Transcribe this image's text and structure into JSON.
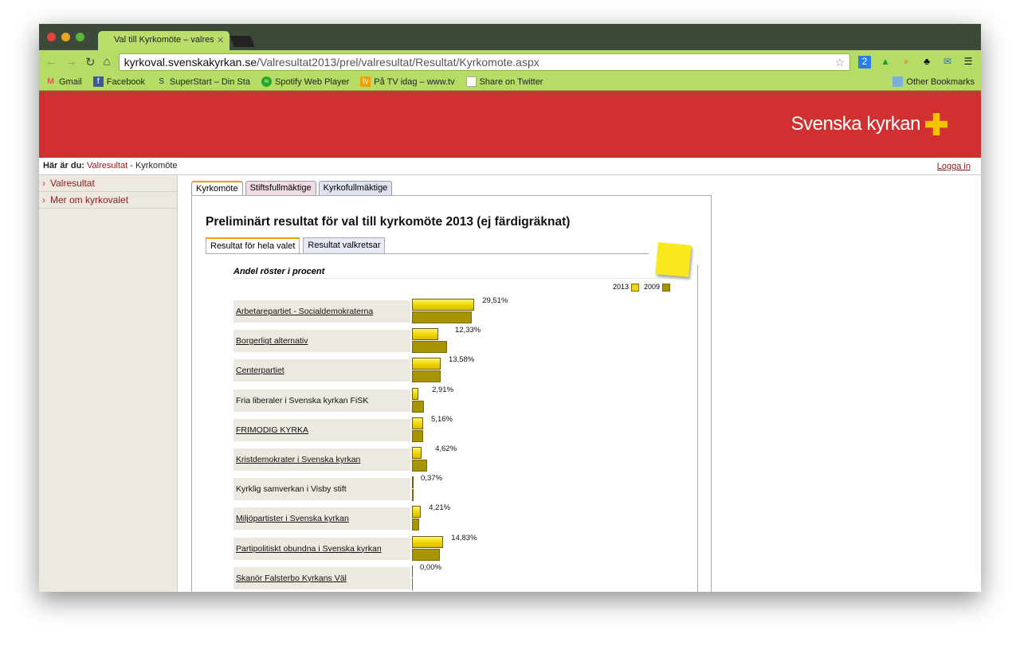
{
  "browser": {
    "tab_title": "Val till Kyrkomöte – valres",
    "url_host": "kyrkoval.svenskakyrkan.se",
    "url_path": "/Valresultat2013/prel/valresultat/Resultat/Kyrkomote.aspx",
    "extension_badge": "2",
    "bookmarks": [
      "Gmail",
      "Facebook",
      "SuperStart – Din Sta",
      "Spotify Web Player",
      "På TV idag – www.tv",
      "Share on Twitter"
    ],
    "other_bookmarks": "Other Bookmarks"
  },
  "site": {
    "logo": "Svenska kyrkan",
    "breadcrumb_label": "Här är du:",
    "breadcrumb_link": "Valresultat",
    "breadcrumb_sep": " - ",
    "breadcrumb_current": "Kyrkomöte",
    "login": "Logga in",
    "sidebar": [
      "Valresultat",
      "Mer om kyrkovalet"
    ],
    "tabs": [
      "Kyrkomöte",
      "Stiftsfullmäktige",
      "Kyrkofullmäktige"
    ],
    "heading": "Preliminärt resultat för val till kyrkomöte 2013 (ej färdigräknat)",
    "subtabs": [
      "Resultat för hela valet",
      "Resultat valkretsar"
    ]
  },
  "chart_data": {
    "type": "bar",
    "title": "Andel röster i procent",
    "legend": [
      "2013",
      "2009"
    ],
    "colors": {
      "2013": "#f2d800",
      "2009": "#a89400"
    },
    "categories": [
      "Arbetarepartiet - Socialdemokraterna",
      "Borgerligt alternativ",
      "Centerpartiet",
      "Fria liberaler i Svenska kyrkan FiSK",
      "FRIMODIG KYRKA",
      "Kristdemokrater i Svenska kyrkan",
      "Kyrklig samverkan i Visby stift",
      "Miljöpartister i Svenska kyrkan",
      "Partipolitiskt obundna i Svenska kyrkan",
      "Skanör Falsterbo Kyrkans Väl"
    ],
    "linked": [
      true,
      true,
      true,
      false,
      true,
      true,
      false,
      true,
      true,
      true
    ],
    "series": [
      {
        "name": "2013",
        "values": [
          29.51,
          12.33,
          13.58,
          2.91,
          5.16,
          4.62,
          0.37,
          4.21,
          14.83,
          0.0
        ]
      },
      {
        "name": "2009",
        "values": [
          28.3,
          16.6,
          13.6,
          5.7,
          5.3,
          7.2,
          0.4,
          3.4,
          13.2,
          0.0
        ]
      }
    ],
    "labels": [
      "29,51%",
      "12,33%",
      "13,58%",
      "2,91%",
      "5,16%",
      "4,62%",
      "0,37%",
      "4,21%",
      "14,83%",
      "0,00%"
    ]
  }
}
